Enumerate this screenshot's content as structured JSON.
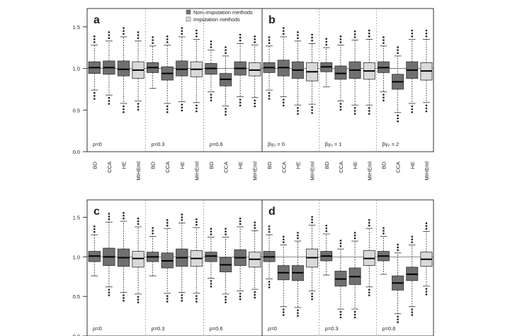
{
  "legend": {
    "items": [
      {
        "label": "Non–Imputation methods",
        "color": "#707070"
      },
      {
        "label": "Imputation methods",
        "color": "#d9d9d9"
      }
    ]
  },
  "chart_data": {
    "type": "boxplot",
    "y_ticks": [
      "0.0",
      "0.5",
      "1.0",
      "1.5"
    ],
    "ylim": [
      0.0,
      1.72
    ],
    "method_labels": [
      "BD",
      "CCA",
      "HE",
      "MIHEml"
    ],
    "colors": {
      "non_imputation": "#707070",
      "imputation": "#d9d9d9"
    },
    "panels": [
      {
        "label": "a",
        "groups": [
          {
            "label": "ρ=0",
            "boxes": [
              [
                0.74,
                0.94,
                1.01,
                1.08,
                1.28
              ],
              [
                0.68,
                0.93,
                1.01,
                1.09,
                1.33
              ],
              [
                0.58,
                0.91,
                0.99,
                1.09,
                1.38
              ],
              [
                0.61,
                0.88,
                0.98,
                1.08,
                1.33
              ]
            ]
          },
          {
            "label": "ρ=0.3",
            "boxes": [
              [
                0.76,
                0.95,
                1.01,
                1.07,
                1.27
              ],
              [
                0.58,
                0.86,
                0.94,
                1.02,
                1.28
              ],
              [
                0.6,
                0.91,
                0.99,
                1.09,
                1.38
              ],
              [
                0.59,
                0.9,
                0.99,
                1.08,
                1.35
              ]
            ]
          },
          {
            "label": "ρ=0.6",
            "boxes": [
              [
                0.72,
                0.93,
                1.0,
                1.06,
                1.22
              ],
              [
                0.55,
                0.79,
                0.87,
                0.94,
                1.15
              ],
              [
                0.66,
                0.92,
                1.0,
                1.08,
                1.3
              ],
              [
                0.65,
                0.91,
                0.98,
                1.07,
                1.28
              ]
            ]
          }
        ]
      },
      {
        "label": "b",
        "groups": [
          {
            "label": "βγ₀ = 0",
            "boxes": [
              [
                0.74,
                0.95,
                1.01,
                1.07,
                1.27
              ],
              [
                0.66,
                0.91,
                1.01,
                1.1,
                1.38
              ],
              [
                0.56,
                0.88,
                0.98,
                1.08,
                1.33
              ],
              [
                0.57,
                0.85,
                0.96,
                1.07,
                1.3
              ]
            ]
          },
          {
            "label": "βγ₀ = 1",
            "boxes": [
              [
                0.78,
                0.96,
                1.02,
                1.07,
                1.25
              ],
              [
                0.61,
                0.87,
                0.94,
                1.03,
                1.28
              ],
              [
                0.56,
                0.88,
                0.98,
                1.08,
                1.34
              ],
              [
                0.56,
                0.87,
                0.97,
                1.07,
                1.35
              ]
            ]
          },
          {
            "label": "βγ₀ = 2",
            "boxes": [
              [
                0.72,
                0.95,
                1.01,
                1.08,
                1.27
              ],
              [
                0.47,
                0.75,
                0.84,
                0.93,
                1.15
              ],
              [
                0.58,
                0.88,
                0.98,
                1.08,
                1.35
              ],
              [
                0.59,
                0.86,
                0.97,
                1.07,
                1.35
              ]
            ]
          }
        ]
      },
      {
        "label": "c",
        "groups": [
          {
            "label": "ρ=0",
            "boxes": [
              [
                0.76,
                0.94,
                1.01,
                1.07,
                1.28
              ],
              [
                0.62,
                0.89,
                1.0,
                1.11,
                1.44
              ],
              [
                0.55,
                0.88,
                0.99,
                1.1,
                1.45
              ],
              [
                0.53,
                0.87,
                0.98,
                1.07,
                1.38
              ]
            ]
          },
          {
            "label": "ρ=0.3",
            "boxes": [
              [
                0.76,
                0.94,
                1.0,
                1.06,
                1.26
              ],
              [
                0.54,
                0.86,
                0.95,
                1.05,
                1.36
              ],
              [
                0.55,
                0.88,
                0.99,
                1.1,
                1.43
              ],
              [
                0.54,
                0.88,
                0.98,
                1.08,
                1.37
              ]
            ]
          },
          {
            "label": "ρ=0.6",
            "boxes": [
              [
                0.73,
                0.94,
                1.01,
                1.06,
                1.25
              ],
              [
                0.53,
                0.81,
                0.9,
                0.99,
                1.25
              ],
              [
                0.57,
                0.89,
                0.99,
                1.09,
                1.38
              ],
              [
                0.59,
                0.87,
                0.97,
                1.06,
                1.33
              ]
            ]
          }
        ]
      },
      {
        "label": "d",
        "groups": [
          {
            "label": "ρ=0",
            "boxes": [
              [
                0.72,
                0.94,
                1.0,
                1.07,
                1.28
              ],
              [
                0.37,
                0.71,
                0.8,
                0.89,
                1.15
              ],
              [
                0.36,
                0.7,
                0.8,
                0.89,
                1.2
              ],
              [
                0.57,
                0.87,
                0.99,
                1.1,
                1.4
              ]
            ]
          },
          {
            "label": "ρ=0.3",
            "boxes": [
              [
                0.77,
                0.95,
                1.01,
                1.07,
                1.29
              ],
              [
                0.34,
                0.63,
                0.72,
                0.82,
                1.1
              ],
              [
                0.34,
                0.65,
                0.75,
                0.86,
                1.2
              ],
              [
                0.62,
                0.89,
                0.98,
                1.08,
                1.36
              ]
            ]
          },
          {
            "label": "ρ=0.6",
            "boxes": [
              [
                0.78,
                0.95,
                1.01,
                1.07,
                1.26
              ],
              [
                0.28,
                0.58,
                0.67,
                0.76,
                1.05
              ],
              [
                0.37,
                0.7,
                0.78,
                0.87,
                1.15
              ],
              [
                0.63,
                0.88,
                0.97,
                1.06,
                1.32
              ]
            ]
          }
        ]
      }
    ]
  }
}
